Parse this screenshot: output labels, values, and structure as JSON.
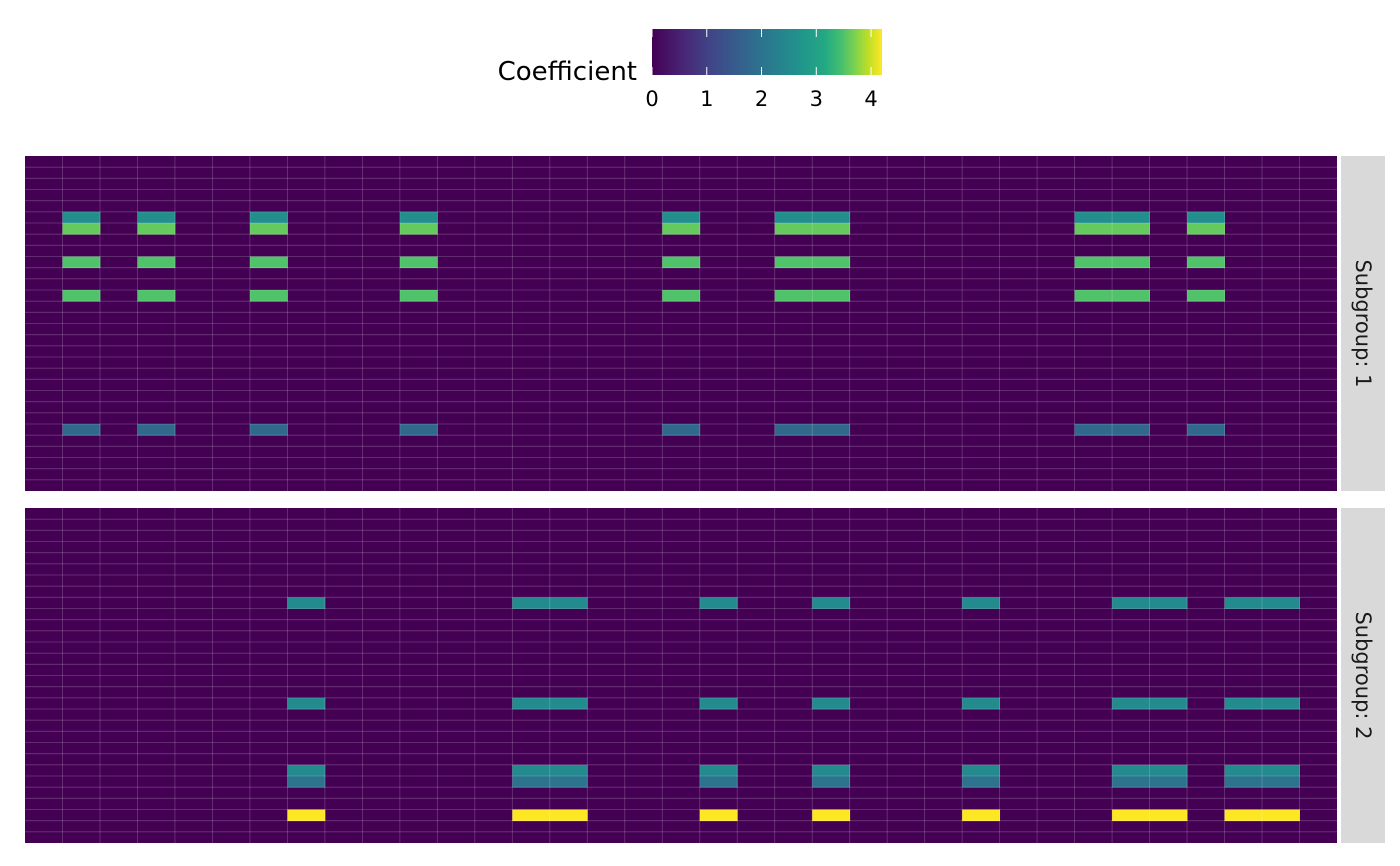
{
  "chart_data": {
    "type": "heatmap",
    "title": "",
    "xlabel": "",
    "ylabel": "",
    "n_columns": 35,
    "n_rows": 30,
    "legend": {
      "title": "Coefficient",
      "placement": "top",
      "ticks": [
        "0",
        "1",
        "2",
        "3",
        "4"
      ],
      "range": [
        0,
        4.2
      ],
      "colormap": "viridis"
    },
    "grid": true,
    "panels": [
      {
        "strip_label": "Subgroup: 1",
        "blocks": [
          {
            "rows": [
              5
            ],
            "cols": [
              1,
              3,
              6,
              10,
              17,
              20,
              21,
              28,
              29,
              31
            ],
            "value": 2.6
          },
          {
            "rows": [
              6
            ],
            "cols": [
              1,
              3,
              6,
              10,
              17,
              20,
              21,
              28,
              29,
              31
            ],
            "value": 3.6
          },
          {
            "rows": [
              9,
              12
            ],
            "cols": [
              1,
              3,
              6,
              10,
              17,
              20,
              21,
              28,
              29,
              31
            ],
            "value": 3.5
          },
          {
            "rows": [
              24
            ],
            "cols": [
              1,
              3,
              6,
              10,
              17,
              20,
              21,
              28,
              29,
              31
            ],
            "value": 1.8
          }
        ]
      },
      {
        "strip_label": "Subgroup: 2",
        "blocks": [
          {
            "rows": [
              8,
              17,
              23
            ],
            "cols": [
              7,
              13,
              14,
              18,
              21,
              25,
              29,
              30,
              32,
              33
            ],
            "value": 2.5
          },
          {
            "rows": [
              24
            ],
            "cols": [
              7,
              13,
              14,
              18,
              21,
              25,
              29,
              30,
              32,
              33
            ],
            "value": 2.0
          },
          {
            "rows": [
              27
            ],
            "cols": [
              7,
              13,
              14,
              18,
              21,
              25,
              29,
              30,
              32,
              33
            ],
            "value": 4.2
          }
        ]
      }
    ]
  }
}
